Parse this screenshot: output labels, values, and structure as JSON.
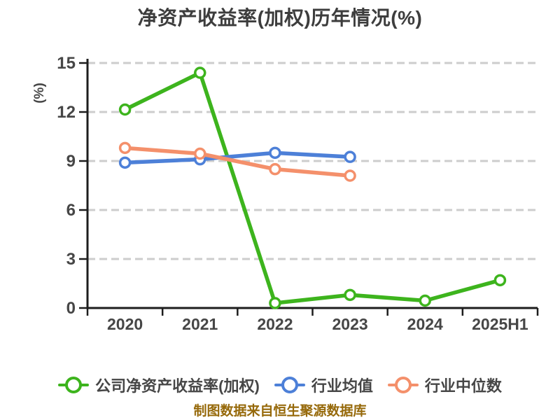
{
  "colors": {
    "bg": "#ffffff",
    "title": "#3d3d3d",
    "tick_label": "#464646",
    "axis": "#1d1d1d",
    "grid": "#cdcdcd",
    "ylabel": "#f60505",
    "caption": "#96690a",
    "company": "#3db41d",
    "industry_avg": "#4d80d8",
    "industry_median": "#f4906b"
  },
  "chart_data": {
    "type": "line",
    "title": "净资产收益率(加权)历年情况(%)",
    "ylabel": "(%)",
    "categories": [
      "2020",
      "2021",
      "2022",
      "2023",
      "2024",
      "2025H1"
    ],
    "series": [
      {
        "key": "company",
        "name": "公司净资产收益率(加权)",
        "values": [
          12.15,
          14.4,
          0.3,
          0.8,
          0.45,
          1.7
        ]
      },
      {
        "key": "industry_avg",
        "name": "行业均值",
        "values": [
          8.9,
          9.1,
          9.5,
          9.25,
          null,
          null
        ]
      },
      {
        "key": "industry_median",
        "name": "行业中位数",
        "values": [
          9.8,
          9.45,
          8.5,
          8.1,
          null,
          null
        ]
      }
    ],
    "yticks": [
      0,
      3,
      6,
      9,
      12,
      15
    ],
    "ylim": [
      0,
      15
    ],
    "grid": "horizontal-dashed",
    "legend_position": "bottom",
    "marker": "circle-white-fill",
    "source_note": "制图数据来自恒生聚源数据库"
  }
}
